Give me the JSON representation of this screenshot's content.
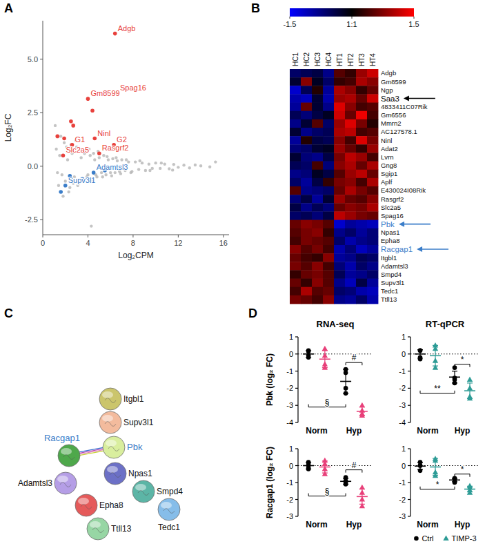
{
  "chart_data": [
    {
      "type": "scatter",
      "panel_label": "A",
      "xlabel": "Log₂CPM",
      "ylabel": "Log₂FC",
      "xlim": [
        0,
        16.5
      ],
      "ylim": [
        -3.2,
        6.8
      ],
      "xticks": [
        0,
        4,
        8,
        12,
        16
      ],
      "yticks": [
        -2.5,
        {
          "value": 0,
          "label": "0.0"
        },
        2.5,
        {
          "value": 5,
          "label": "5.0"
        }
      ],
      "series": [
        {
          "color": "#b0b0b0",
          "x": [
            1.2,
            1.4,
            1.5,
            1.7,
            1.9,
            2.0,
            2.2,
            2.4,
            2.6,
            2.8,
            3.0,
            3.2,
            3.4,
            3.6,
            3.8,
            4.0,
            4.2,
            4.4,
            4.6,
            4.8,
            5.0,
            5.2,
            5.4,
            5.6,
            5.8,
            6.0,
            6.2,
            6.4,
            6.6,
            6.8,
            7.0,
            7.3,
            7.6,
            7.9,
            8.2,
            8.5,
            8.8,
            9.1,
            9.4,
            9.7,
            10.0,
            10.4,
            10.8,
            11.2,
            11.6,
            12.0,
            12.5,
            13.0,
            13.5,
            14.0,
            14.8,
            15.3,
            1.3,
            1.6,
            1.8,
            2.1,
            2.3,
            2.5,
            2.7,
            2.9,
            3.1,
            3.3,
            3.5,
            3.7,
            3.9,
            4.1,
            4.3,
            4.5,
            4.7,
            4.9,
            5.3,
            5.7,
            6.1,
            6.5,
            6.9,
            7.4,
            7.8,
            8.6,
            9.5,
            10.5,
            11.5,
            4.3,
            1.1
          ],
          "values": [
            0.8,
            -0.9,
            0.5,
            -0.4,
            1.1,
            -0.7,
            0.3,
            -1.0,
            0.6,
            -0.5,
            0.9,
            -0.8,
            0.4,
            -0.6,
            0.7,
            -0.4,
            0.5,
            -0.6,
            0.3,
            -0.5,
            0.4,
            -0.3,
            0.5,
            -0.4,
            0.3,
            -0.3,
            0.35,
            -0.3,
            0.25,
            -0.25,
            0.3,
            -0.2,
            0.2,
            -0.25,
            0.2,
            -0.15,
            0.15,
            -0.2,
            0.1,
            -0.1,
            0.15,
            -0.1,
            0.1,
            -0.12,
            0.08,
            -0.05,
            0.05,
            -0.08,
            0.06,
            0.02,
            -0.03,
            0.2,
            -0.3,
            1.4,
            -1.4,
            0.9,
            -1.2,
            1.0,
            -0.8,
            1.2,
            -0.9,
            0.7,
            -0.7,
            0.6,
            -0.5,
            0.8,
            -0.7,
            0.6,
            -0.4,
            0.7,
            -0.5,
            0.45,
            -0.45,
            0.4,
            -0.35,
            0.3,
            -0.3,
            0.25,
            -0.2,
            0.15,
            -0.18,
            -2.8,
            1.9
          ]
        },
        {
          "color": "#e8413c",
          "x": [
            6.4,
            6.6,
            4.0,
            4.4,
            2.5,
            2.7,
            4.6,
            6.3,
            1.3,
            2.6,
            3.4,
            1.8,
            5.0,
            1.9
          ],
          "values": [
            6.2,
            3.4,
            3.15,
            2.6,
            2.1,
            1.9,
            1.3,
            1.0,
            1.4,
            1.0,
            0.7,
            0.5,
            0.6,
            1.3
          ],
          "point_labels": [
            "Adgb",
            "Spag16",
            "Gm8599",
            null,
            null,
            null,
            "Ninl",
            "G2",
            null,
            "G1",
            null,
            "Slc2a5",
            "Rasgrf2",
            null
          ]
        },
        {
          "color": "#3a7dc9",
          "x": [
            4.5,
            2.0,
            1.6,
            3.5,
            2.4,
            5.5
          ],
          "values": [
            -0.3,
            -0.9,
            -1.2,
            -0.6,
            -0.45,
            -0.2
          ],
          "point_labels": [
            "Adamtsl3",
            "Supv3l1",
            null,
            null,
            null,
            null
          ]
        }
      ]
    },
    {
      "type": "heatmap",
      "panel_label": "B",
      "columns": [
        "HC1",
        "HC2",
        "HC3",
        "HC4",
        "HT1",
        "HT2",
        "HT3",
        "HT4"
      ],
      "rows": [
        "Adgb",
        "Gm8599",
        "Ngp",
        "Saa3",
        "4833411C07Rik",
        "Gm6556",
        "Mmrn2",
        "AC127578.1",
        "Ninl",
        "Adat2",
        "Lvrn",
        "Gng8",
        "Sgip1",
        "Aplf",
        "E430024I08Rik",
        "Rasgrf2",
        "Slc2a5",
        "Spag16",
        "Pbk",
        "Npas1",
        "Epha8",
        "Racgap1",
        "Itgbl1",
        "Adamtsl3",
        "Smpd4",
        "Supv3l1",
        "Tedc1",
        "Ttll13"
      ],
      "cells": [
        [
          -0.6,
          -0.5,
          -0.4,
          -0.8,
          0.5,
          0.3,
          0.9,
          1.2
        ],
        [
          -0.3,
          0.8,
          -0.2,
          -0.6,
          0.3,
          0.4,
          1.0,
          0.8
        ],
        [
          -1.2,
          -0.5,
          0.2,
          -0.9,
          1.0,
          0.8,
          0.3,
          0.6
        ],
        [
          -1.0,
          -1.1,
          -0.3,
          -1.0,
          0.9,
          1.0,
          0.6,
          1.2
        ],
        [
          -0.9,
          0.6,
          -0.3,
          -0.8,
          1.3,
          0.8,
          0.4,
          0.5
        ],
        [
          -0.5,
          -0.7,
          -0.4,
          -0.2,
          1.2,
          0.6,
          1.4,
          0.4
        ],
        [
          -0.8,
          -0.3,
          0.5,
          -0.6,
          0.9,
          1.3,
          0.7,
          0.2
        ],
        [
          -0.3,
          -0.8,
          -0.6,
          -0.5,
          1.0,
          1.1,
          0.4,
          0.5
        ],
        [
          -0.9,
          0.2,
          -0.4,
          -0.5,
          0.8,
          0.4,
          1.3,
          0.7
        ],
        [
          -0.7,
          -0.6,
          -0.3,
          -0.2,
          0.9,
          0.6,
          0.3,
          0.9
        ],
        [
          -0.3,
          -0.7,
          -0.8,
          -0.4,
          0.7,
          1.1,
          0.9,
          0.4
        ],
        [
          -0.5,
          -0.6,
          0.4,
          -0.7,
          0.8,
          1.0,
          0.6,
          1.0
        ],
        [
          -0.8,
          -0.7,
          -0.2,
          -0.4,
          0.5,
          0.9,
          1.1,
          0.6
        ],
        [
          -0.6,
          -0.9,
          -0.4,
          0.3,
          0.7,
          0.8,
          0.4,
          1.0
        ],
        [
          0.5,
          -0.8,
          -0.7,
          -0.6,
          0.6,
          1.0,
          0.7,
          0.5
        ],
        [
          -0.7,
          -0.4,
          -0.9,
          -0.3,
          0.9,
          0.6,
          0.5,
          0.8
        ],
        [
          -0.4,
          -0.8,
          -0.5,
          -0.7,
          0.6,
          0.8,
          0.7,
          1.0
        ],
        [
          -0.6,
          -0.5,
          -0.7,
          -0.4,
          1.1,
          0.9,
          0.7,
          0.6
        ],
        [
          0.6,
          0.8,
          0.7,
          0.5,
          -1.2,
          -0.9,
          -1.0,
          -1.1
        ],
        [
          0.5,
          0.7,
          0.8,
          0.3,
          -0.8,
          -0.6,
          -0.9,
          -0.7
        ],
        [
          0.4,
          0.7,
          0.6,
          0.5,
          -0.6,
          -1.0,
          -0.8,
          -0.7
        ],
        [
          0.8,
          0.5,
          0.7,
          0.4,
          -1.0,
          -0.7,
          -1.1,
          -0.9
        ],
        [
          0.6,
          0.4,
          0.3,
          0.8,
          -0.9,
          -0.8,
          -0.5,
          -0.6
        ],
        [
          0.7,
          0.5,
          0.8,
          0.4,
          -0.7,
          -1.0,
          -0.6,
          -0.8
        ],
        [
          0.3,
          0.6,
          0.7,
          0.5,
          -0.5,
          -0.9,
          -0.8,
          -0.6
        ],
        [
          0.6,
          0.3,
          0.8,
          0.5,
          -0.8,
          -1.1,
          -0.4,
          -0.9
        ],
        [
          0.4,
          1.0,
          0.5,
          0.6,
          -0.6,
          -0.7,
          -1.0,
          -1.1
        ],
        [
          0.7,
          0.6,
          0.4,
          0.8,
          -0.8,
          -0.9,
          -0.6,
          -1.0
        ]
      ],
      "colorbar_range": [
        -1.5,
        1.5
      ],
      "colorbar_ticks": [
        -1.5,
        {
          "value": 0,
          "label": "1:1"
        },
        1.5
      ],
      "arrows": [
        {
          "row": 3,
          "color": "#000000"
        },
        {
          "row": 18,
          "color": "#3a7dc9"
        },
        {
          "row": 21,
          "color": "#3a7dc9"
        }
      ]
    },
    {
      "type": "dot",
      "panel_label": "D",
      "title": "RNA-seq",
      "ylabel": "Pbk (log₂ FC)",
      "categories": [
        "Norm",
        "Hyp"
      ],
      "ylim": [
        -4,
        1
      ],
      "yticks": [
        -4,
        -3,
        -2,
        -1,
        0,
        1
      ],
      "baseline": 0,
      "series": [
        {
          "color": "#000000",
          "marker": "circle",
          "values": [
            0,
            -1.6
          ],
          "error": [
            0.2,
            0.7
          ],
          "points": [
            [
              0.15,
              -0.2,
              0.2,
              -0.1
            ],
            [
              -0.9,
              -1.1,
              -2.0,
              -2.3
            ]
          ]
        },
        {
          "color": "#e8407a",
          "marker": "triangle",
          "values": [
            -0.3,
            -3.35
          ],
          "error": [
            0.5,
            0.25
          ],
          "points": [
            [
              0.3,
              -0.1,
              -0.6,
              -0.8
            ],
            [
              -3.0,
              -3.3,
              -3.5,
              -3.6
            ]
          ]
        }
      ],
      "annotations": [
        {
          "text": "#",
          "y": -0.5,
          "from": [
            1,
            0
          ],
          "to": [
            1,
            1
          ]
        },
        {
          "text": "§",
          "y": -3.1,
          "from": [
            0,
            0
          ],
          "to": [
            1,
            0
          ]
        }
      ]
    },
    {
      "type": "dot",
      "title": "RT-qPCR",
      "categories": [
        "Norm",
        "Hyp"
      ],
      "ylim": [
        -4,
        1
      ],
      "yticks": [
        -4,
        -3,
        -2,
        -1,
        0,
        1
      ],
      "baseline": 0,
      "series": [
        {
          "color": "#000000",
          "marker": "circle",
          "values": [
            0,
            -1.35
          ],
          "error": [
            0.25,
            0.35
          ],
          "points": [
            [
              0.2,
              0.2,
              -0.2,
              -0.3
            ],
            [
              -0.8,
              -1.4,
              -1.5,
              -1.7
            ]
          ]
        },
        {
          "color": "#2e9c96",
          "marker": "triangle",
          "values": [
            -0.1,
            -2.15
          ],
          "error": [
            0.6,
            0.45
          ],
          "points": [
            [
              0.5,
              0.3,
              -0.4,
              -0.8
            ],
            [
              -1.5,
              -2.0,
              -2.6,
              -2.5
            ]
          ]
        }
      ],
      "annotations": [
        {
          "text": "*",
          "y": -0.6,
          "from": [
            1,
            0
          ],
          "to": [
            1,
            1
          ]
        },
        {
          "text": "**",
          "y": -2.3,
          "from": [
            0,
            0
          ],
          "to": [
            1,
            0
          ]
        }
      ]
    },
    {
      "type": "dot",
      "ylabel": "Racgap1 (log₂ FC)",
      "categories": [
        "Norm",
        "Hyp"
      ],
      "ylim": [
        -3,
        1
      ],
      "yticks": [
        -3,
        -2,
        -1,
        0,
        1
      ],
      "baseline": 0,
      "series": [
        {
          "color": "#000000",
          "marker": "circle",
          "values": [
            0,
            -0.93
          ],
          "error": [
            0.2,
            0.17
          ],
          "points": [
            [
              0.2,
              0.1,
              -0.1,
              -0.2
            ],
            [
              -0.7,
              -0.9,
              -1.0,
              -1.1
            ]
          ]
        },
        {
          "color": "#e8407a",
          "marker": "triangle",
          "values": [
            -0.08,
            -1.83
          ],
          "error": [
            0.35,
            0.45
          ],
          "points": [
            [
              0.3,
              0.1,
              -0.2,
              -0.5
            ],
            [
              -1.3,
              -1.6,
              -2.0,
              -2.4
            ]
          ]
        }
      ],
      "annotations": [
        {
          "text": "#",
          "y": -0.25,
          "from": [
            1,
            0
          ],
          "to": [
            1,
            1
          ]
        },
        {
          "text": "§",
          "y": -1.8,
          "from": [
            0,
            0
          ],
          "to": [
            1,
            0
          ]
        }
      ]
    },
    {
      "type": "dot",
      "legend": "bottom",
      "categories": [
        "Norm",
        "Hyp"
      ],
      "ylim": [
        -3,
        1
      ],
      "yticks": [
        -3,
        -2,
        -1,
        0,
        1
      ],
      "baseline": 0,
      "series": [
        {
          "name": "Ctrl",
          "color": "#000000",
          "marker": "circle",
          "values": [
            -0.03,
            -0.85
          ],
          "error": [
            0.2,
            0.1
          ],
          "points": [
            [
              0.2,
              0.0,
              0.0,
              -0.3
            ],
            [
              -0.75,
              -0.8,
              -0.85,
              -1.0
            ]
          ]
        },
        {
          "name": "TIMP-3",
          "color": "#2e9c96",
          "marker": "triangle",
          "values": [
            -0.08,
            -1.39
          ],
          "error": [
            0.5,
            0.17
          ],
          "points": [
            [
              0.4,
              0.3,
              -0.4,
              -0.6
            ],
            [
              -1.2,
              -1.3,
              -1.45,
              -1.6
            ]
          ]
        }
      ],
      "annotations": [
        {
          "text": "*",
          "y": -0.5,
          "from": [
            1,
            0
          ],
          "to": [
            1,
            1
          ]
        },
        {
          "text": "*",
          "y": -1.4,
          "from": [
            0,
            0
          ],
          "to": [
            1,
            0
          ]
        }
      ]
    }
  ],
  "diagram": {
    "panel_label": "C",
    "nodes": [
      {
        "label": "Itgbl1",
        "color": "#cbc56c"
      },
      {
        "label": "Supv3l1",
        "color": "#f3bb9d"
      },
      {
        "label": "Racgap1",
        "color": "#4ea84b",
        "label_color": "#3a7dc9"
      },
      {
        "label": "Pbk",
        "color": "#d9ee9e",
        "label_color": "#3a7dc9"
      },
      {
        "label": "Npas1",
        "color": "#6c70c6"
      },
      {
        "label": "Adamtsl3",
        "color": "#b59ee6"
      },
      {
        "label": "Smpd4",
        "color": "#5cb5a6"
      },
      {
        "label": "Epha8",
        "color": "#e55a5a"
      },
      {
        "label": "Tedc1",
        "color": "#86bde9"
      },
      {
        "label": "Ttll13",
        "color": "#97d6a4"
      }
    ],
    "edges": [
      [
        2,
        3
      ]
    ]
  }
}
